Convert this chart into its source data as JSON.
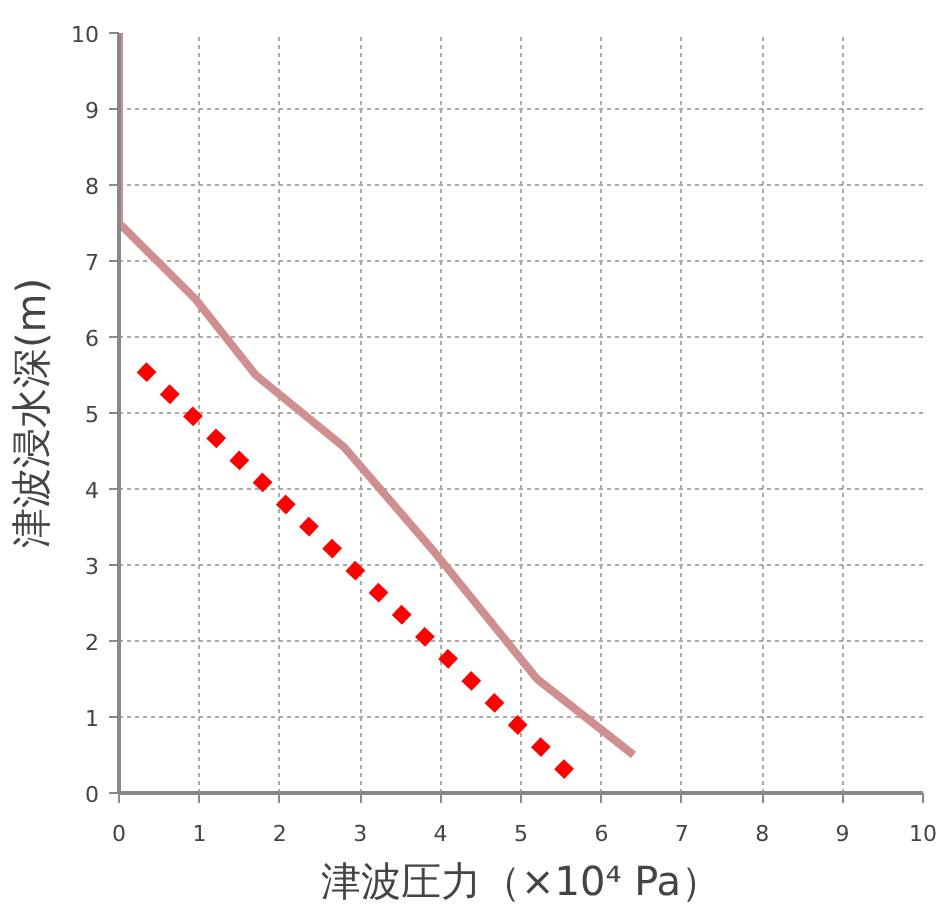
{
  "chart_data": {
    "type": "line",
    "xlabel": "津波圧力（×10⁴ Pa）",
    "ylabel": "津波浸水深(m)",
    "xlim": [
      0,
      10
    ],
    "ylim": [
      0,
      10
    ],
    "xticks": [
      0,
      1,
      2,
      3,
      4,
      5,
      6,
      7,
      8,
      9,
      10
    ],
    "yticks": [
      0,
      1,
      2,
      3,
      4,
      5,
      6,
      7,
      8,
      9,
      10
    ],
    "grid": true,
    "series": [
      {
        "color": "#d08f8f",
        "line_style": "solid",
        "x": [
          0,
          0,
          0.95,
          1.7,
          2.8,
          3.9,
          5.2,
          6.4
        ],
        "values": [
          10,
          7.5,
          6.5,
          5.5,
          4.55,
          3.2,
          1.5,
          0.5
        ]
      },
      {
        "color": "#ff0000",
        "line_style": "dotted",
        "x": [
          0.28,
          5.6
        ],
        "values": [
          5.6,
          0.25
        ]
      }
    ]
  }
}
